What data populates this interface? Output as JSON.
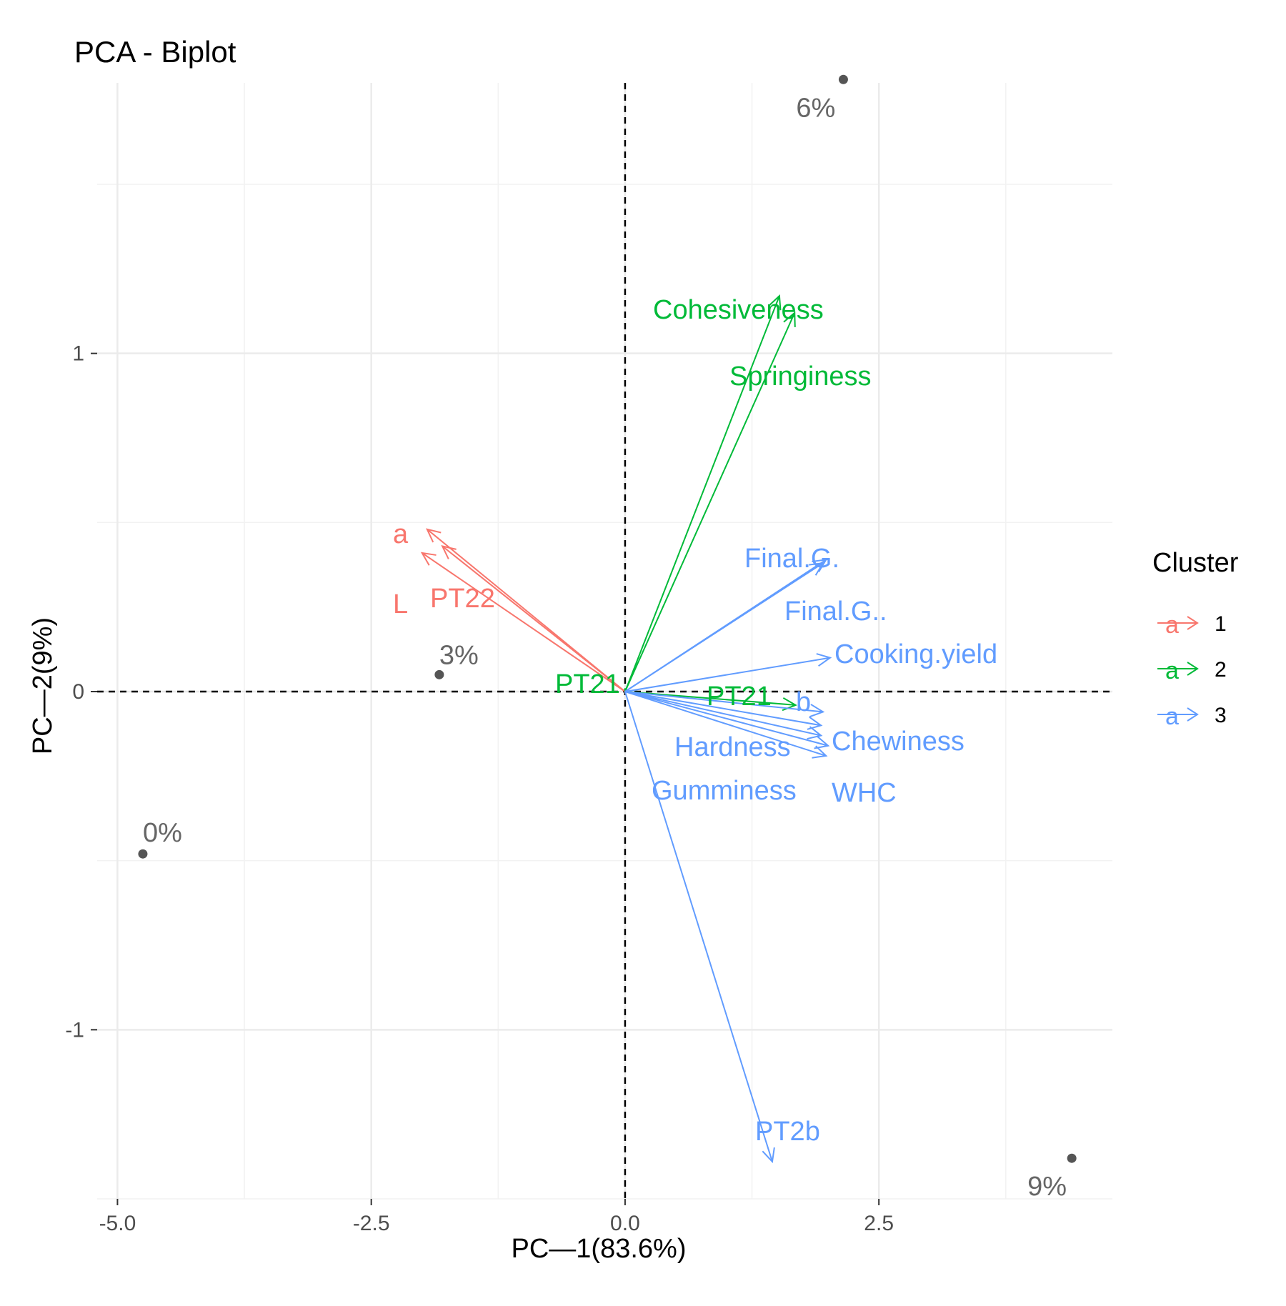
{
  "chart_data": {
    "type": "scatter",
    "title": "PCA - Biplot",
    "xlabel": "PC—1(83.6%)",
    "ylabel": "PC—2(9%)",
    "xlim": [
      -5.2,
      4.8
    ],
    "ylim": [
      -1.5,
      1.8
    ],
    "xticks": [
      -5.0,
      -2.5,
      0.0,
      2.5
    ],
    "xtick_labels": [
      "-5.0",
      "-2.5",
      "0.0",
      "2.5"
    ],
    "yticks": [
      -1,
      0,
      1
    ],
    "ytick_labels": [
      "-1",
      "0",
      "1"
    ],
    "grid": true,
    "reference_lines": {
      "x": 0,
      "y": 0,
      "style": "dashed"
    },
    "points": [
      {
        "label": "6%",
        "x": 2.15,
        "y": 1.81
      },
      {
        "label": "3%",
        "x": -1.83,
        "y": 0.05
      },
      {
        "label": "0%",
        "x": -4.75,
        "y": -0.48
      },
      {
        "label": "9%",
        "x": 4.4,
        "y": -1.38
      }
    ],
    "legend": {
      "title": "Cluster",
      "position": "right",
      "key_glyph": "a",
      "entries": [
        {
          "label": "1",
          "color": "#F8766D"
        },
        {
          "label": "2",
          "color": "#00BA38"
        },
        {
          "label": "3",
          "color": "#619CFF"
        }
      ]
    },
    "variables": [
      {
        "label": "a",
        "cluster": "1",
        "x": -1.95,
        "y": 0.48
      },
      {
        "label": "L",
        "cluster": "1",
        "x": -2.0,
        "y": 0.41
      },
      {
        "label": "PT22",
        "cluster": "1",
        "x": -1.8,
        "y": 0.43
      },
      {
        "label": "Cohesiveness",
        "cluster": "2",
        "x": 1.52,
        "y": 1.17
      },
      {
        "label": "Springiness",
        "cluster": "2",
        "x": 1.67,
        "y": 1.12
      },
      {
        "label": "PT21",
        "cluster": "2",
        "x": 1.68,
        "y": -0.04
      },
      {
        "label": "PT21",
        "cluster": "2",
        "x": 0.0,
        "y": 0.01
      },
      {
        "label": "Final.G.",
        "cluster": "3",
        "x": 1.98,
        "y": 0.39
      },
      {
        "label": "Final.G..",
        "cluster": "3",
        "x": 1.95,
        "y": 0.38
      },
      {
        "label": "Cooking.yield",
        "cluster": "3",
        "x": 2.02,
        "y": 0.1
      },
      {
        "label": "b",
        "cluster": "3",
        "x": 1.95,
        "y": -0.06
      },
      {
        "label": "Chewiness",
        "cluster": "3",
        "x": 1.93,
        "y": -0.1
      },
      {
        "label": "Hardness",
        "cluster": "3",
        "x": 1.93,
        "y": -0.13
      },
      {
        "label": "Gumminess",
        "cluster": "3",
        "x": 2.0,
        "y": -0.16
      },
      {
        "label": "WHC",
        "cluster": "3",
        "x": 1.98,
        "y": -0.19
      },
      {
        "label": "PT2b",
        "cluster": "3",
        "x": 1.45,
        "y": -1.39
      }
    ]
  }
}
